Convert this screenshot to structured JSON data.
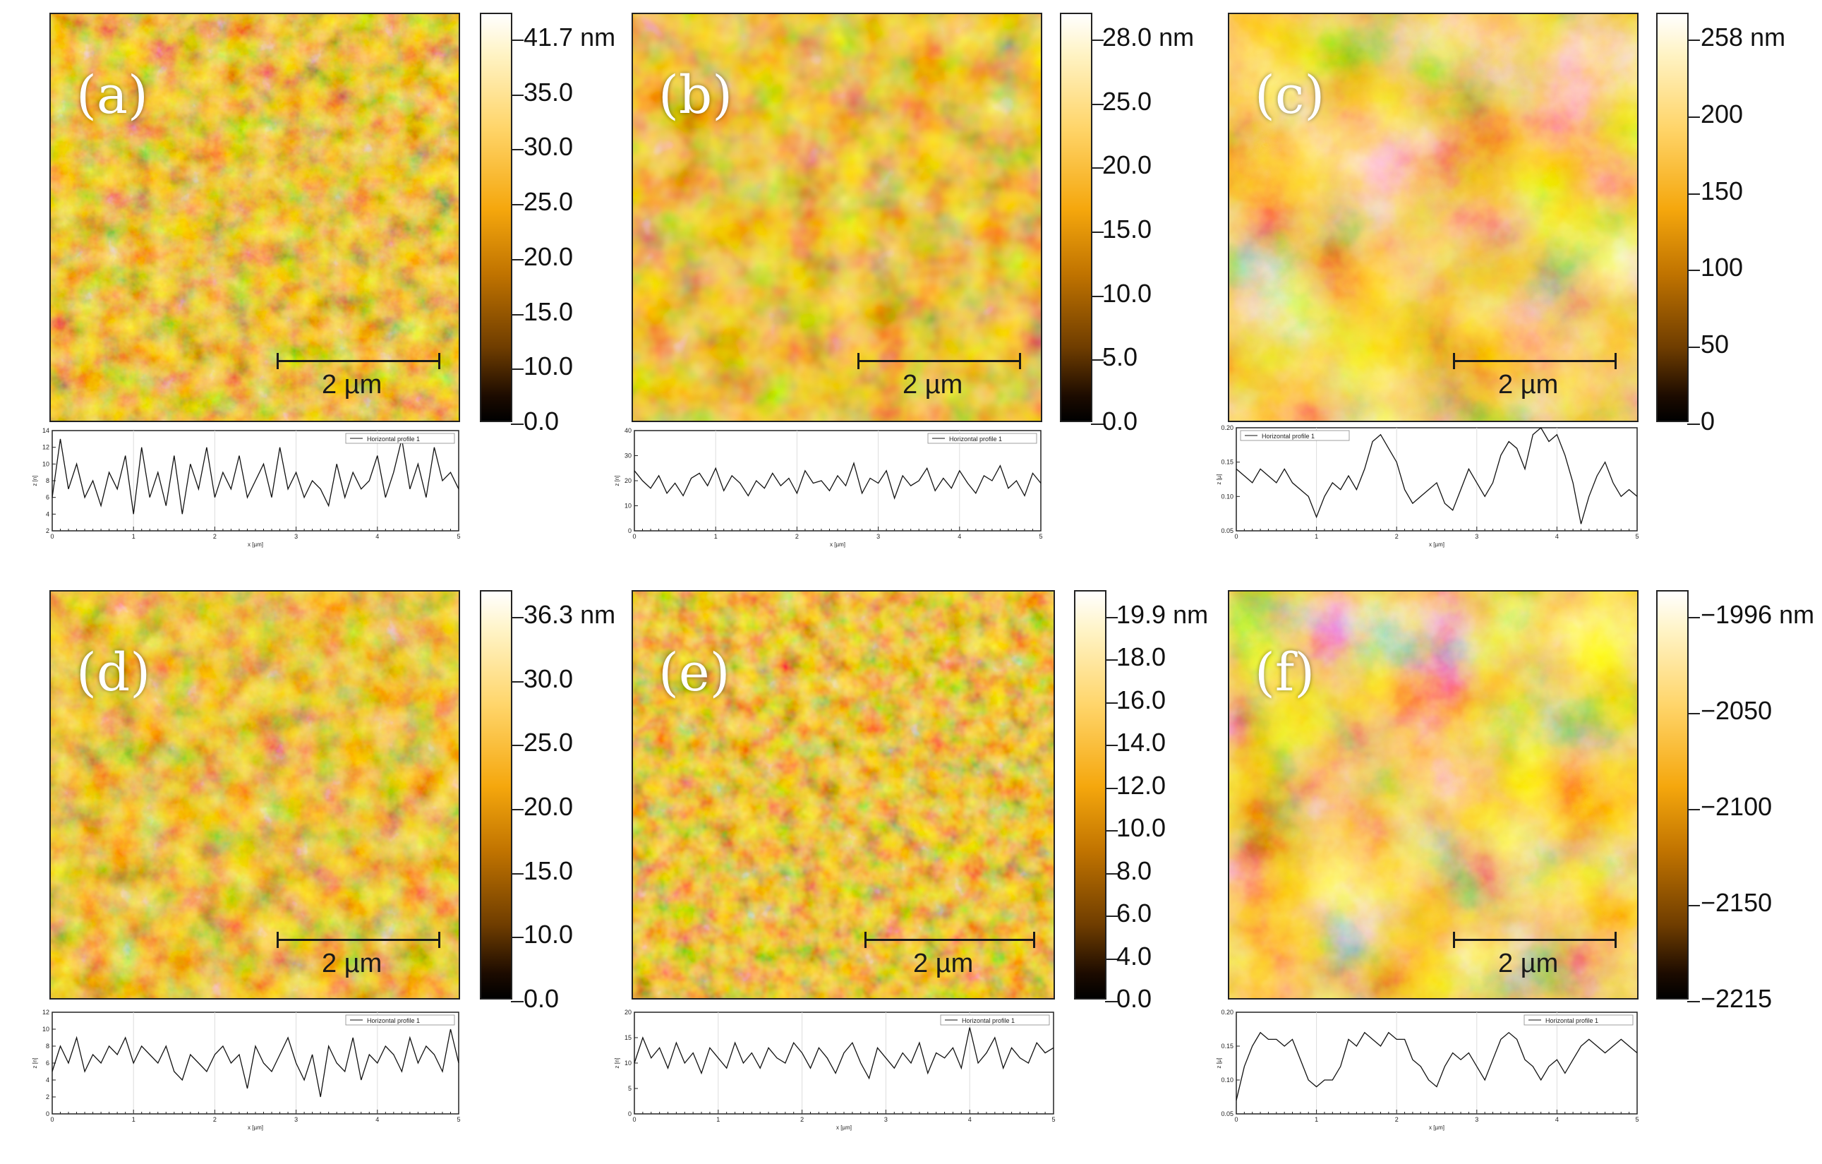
{
  "chart_data": [
    {
      "type": "line",
      "panel": "a",
      "label": "(a)",
      "scale_bar": "2 µm",
      "colorbar": {
        "ticks": [
          "41.7 nm",
          "35.0",
          "30.0",
          "25.0",
          "20.0",
          "15.0",
          "10.0",
          "0.0"
        ]
      },
      "profile": {
        "legend": "Horizontal profile 1",
        "xlabel": "x [µm]",
        "ylabel": "z [n]",
        "xlim": [
          0,
          5
        ],
        "ylim": [
          2,
          14
        ],
        "xticks": [
          "0",
          "1",
          "2",
          "3",
          "4",
          "5"
        ],
        "yticks": [
          "14",
          "12",
          "10",
          "8",
          "6",
          "4",
          "2"
        ],
        "x": [
          0,
          0.1,
          0.2,
          0.3,
          0.4,
          0.5,
          0.6,
          0.7,
          0.8,
          0.9,
          1.0,
          1.1,
          1.2,
          1.3,
          1.4,
          1.5,
          1.6,
          1.7,
          1.8,
          1.9,
          2.0,
          2.1,
          2.2,
          2.3,
          2.4,
          2.5,
          2.6,
          2.7,
          2.8,
          2.9,
          3.0,
          3.1,
          3.2,
          3.3,
          3.4,
          3.5,
          3.6,
          3.7,
          3.8,
          3.9,
          4.0,
          4.1,
          4.2,
          4.3,
          4.4,
          4.5,
          4.6,
          4.7,
          4.8,
          4.9,
          5.0
        ],
        "y": [
          6,
          13,
          7,
          10,
          6,
          8,
          5,
          9,
          7,
          11,
          4,
          12,
          6,
          9,
          5,
          11,
          4,
          10,
          7,
          12,
          6,
          9,
          7,
          11,
          6,
          8,
          10,
          6,
          12,
          7,
          9,
          6,
          8,
          7,
          5,
          10,
          6,
          9,
          7,
          8,
          11,
          6,
          9,
          13,
          7,
          10,
          6,
          12,
          8,
          9,
          7
        ]
      }
    },
    {
      "type": "line",
      "panel": "b",
      "label": "(b)",
      "scale_bar": "2 µm",
      "colorbar": {
        "ticks": [
          "28.0 nm",
          "25.0",
          "20.0",
          "15.0",
          "10.0",
          "5.0",
          "0.0"
        ]
      },
      "profile": {
        "legend": "Horizontal profile 1",
        "xlabel": "x [µm]",
        "ylabel": "z [n]",
        "xlim": [
          0,
          5
        ],
        "ylim": [
          0,
          40
        ],
        "xticks": [
          "0",
          "1",
          "2",
          "3",
          "4",
          "5"
        ],
        "yticks": [
          "40",
          "30",
          "20",
          "10",
          "0"
        ],
        "x": [
          0,
          0.1,
          0.2,
          0.3,
          0.4,
          0.5,
          0.6,
          0.7,
          0.8,
          0.9,
          1.0,
          1.1,
          1.2,
          1.3,
          1.4,
          1.5,
          1.6,
          1.7,
          1.8,
          1.9,
          2.0,
          2.1,
          2.2,
          2.3,
          2.4,
          2.5,
          2.6,
          2.7,
          2.8,
          2.9,
          3.0,
          3.1,
          3.2,
          3.3,
          3.4,
          3.5,
          3.6,
          3.7,
          3.8,
          3.9,
          4.0,
          4.1,
          4.2,
          4.3,
          4.4,
          4.5,
          4.6,
          4.7,
          4.8,
          4.9,
          5.0
        ],
        "y": [
          24,
          20,
          17,
          22,
          15,
          19,
          14,
          21,
          23,
          18,
          25,
          16,
          22,
          19,
          14,
          20,
          17,
          23,
          18,
          21,
          15,
          24,
          19,
          20,
          16,
          22,
          18,
          27,
          15,
          21,
          19,
          24,
          13,
          22,
          18,
          20,
          25,
          16,
          21,
          17,
          24,
          19,
          15,
          22,
          20,
          26,
          17,
          20,
          14,
          23,
          19
        ]
      }
    },
    {
      "type": "line",
      "panel": "c",
      "label": "(c)",
      "scale_bar": "2 µm",
      "colorbar": {
        "ticks": [
          "258 nm",
          "200",
          "150",
          "100",
          "50",
          "0"
        ]
      },
      "profile": {
        "legend": "Horizontal profile 1",
        "xlabel": "x [µm]",
        "ylabel": "z [µ]",
        "xlim": [
          0,
          5
        ],
        "ylim": [
          0.05,
          0.2
        ],
        "xticks": [
          "0",
          "1",
          "2",
          "3",
          "4",
          "5"
        ],
        "yticks": [
          "0.20",
          "0.15",
          "0.10",
          "0.05"
        ],
        "x": [
          0,
          0.1,
          0.2,
          0.3,
          0.4,
          0.5,
          0.6,
          0.7,
          0.8,
          0.9,
          1.0,
          1.1,
          1.2,
          1.3,
          1.4,
          1.5,
          1.6,
          1.7,
          1.8,
          1.9,
          2.0,
          2.1,
          2.2,
          2.3,
          2.4,
          2.5,
          2.6,
          2.7,
          2.8,
          2.9,
          3.0,
          3.1,
          3.2,
          3.3,
          3.4,
          3.5,
          3.6,
          3.7,
          3.8,
          3.9,
          4.0,
          4.1,
          4.2,
          4.3,
          4.4,
          4.5,
          4.6,
          4.7,
          4.8,
          4.9,
          5.0
        ],
        "y": [
          0.14,
          0.13,
          0.12,
          0.14,
          0.13,
          0.12,
          0.14,
          0.12,
          0.11,
          0.1,
          0.07,
          0.1,
          0.12,
          0.11,
          0.13,
          0.11,
          0.14,
          0.18,
          0.19,
          0.17,
          0.15,
          0.11,
          0.09,
          0.1,
          0.11,
          0.12,
          0.09,
          0.08,
          0.11,
          0.14,
          0.12,
          0.1,
          0.12,
          0.16,
          0.18,
          0.17,
          0.14,
          0.19,
          0.2,
          0.18,
          0.19,
          0.16,
          0.12,
          0.06,
          0.1,
          0.13,
          0.15,
          0.12,
          0.1,
          0.11,
          0.1
        ]
      }
    },
    {
      "type": "line",
      "panel": "d",
      "label": "(d)",
      "scale_bar": "2 µm",
      "colorbar": {
        "ticks": [
          "36.3 nm",
          "30.0",
          "25.0",
          "20.0",
          "15.0",
          "10.0",
          "0.0"
        ]
      },
      "profile": {
        "legend": "Horizontal profile 1",
        "xlabel": "x [µm]",
        "ylabel": "z [n]",
        "xlim": [
          0,
          5
        ],
        "ylim": [
          0,
          12
        ],
        "xticks": [
          "0",
          "1",
          "2",
          "3",
          "4",
          "5"
        ],
        "yticks": [
          "12",
          "10",
          "8",
          "6",
          "4",
          "2",
          "0"
        ],
        "x": [
          0,
          0.1,
          0.2,
          0.3,
          0.4,
          0.5,
          0.6,
          0.7,
          0.8,
          0.9,
          1.0,
          1.1,
          1.2,
          1.3,
          1.4,
          1.5,
          1.6,
          1.7,
          1.8,
          1.9,
          2.0,
          2.1,
          2.2,
          2.3,
          2.4,
          2.5,
          2.6,
          2.7,
          2.8,
          2.9,
          3.0,
          3.1,
          3.2,
          3.3,
          3.4,
          3.5,
          3.6,
          3.7,
          3.8,
          3.9,
          4.0,
          4.1,
          4.2,
          4.3,
          4.4,
          4.5,
          4.6,
          4.7,
          4.8,
          4.9,
          5.0
        ],
        "y": [
          5,
          8,
          6,
          9,
          5,
          7,
          6,
          8,
          7,
          9,
          6,
          8,
          7,
          6,
          8,
          5,
          4,
          7,
          6,
          5,
          7,
          8,
          6,
          7,
          3,
          8,
          6,
          5,
          7,
          9,
          6,
          4,
          7,
          2,
          8,
          6,
          5,
          9,
          4,
          7,
          6,
          8,
          7,
          5,
          9,
          6,
          8,
          7,
          5,
          10,
          6
        ]
      }
    },
    {
      "type": "line",
      "panel": "e",
      "label": "(e)",
      "scale_bar": "2 µm",
      "colorbar": {
        "ticks": [
          "19.9 nm",
          "18.0",
          "16.0",
          "14.0",
          "12.0",
          "10.0",
          "8.0",
          "6.0",
          "4.0",
          "0.0"
        ]
      },
      "profile": {
        "legend": "Horizontal profile 1",
        "xlabel": "x [µm]",
        "ylabel": "z [n]",
        "xlim": [
          0,
          5
        ],
        "ylim": [
          0,
          20
        ],
        "xticks": [
          "0",
          "1",
          "2",
          "3",
          "4",
          "5"
        ],
        "yticks": [
          "20",
          "15",
          "10",
          "5",
          "0"
        ],
        "x": [
          0,
          0.1,
          0.2,
          0.3,
          0.4,
          0.5,
          0.6,
          0.7,
          0.8,
          0.9,
          1.0,
          1.1,
          1.2,
          1.3,
          1.4,
          1.5,
          1.6,
          1.7,
          1.8,
          1.9,
          2.0,
          2.1,
          2.2,
          2.3,
          2.4,
          2.5,
          2.6,
          2.7,
          2.8,
          2.9,
          3.0,
          3.1,
          3.2,
          3.3,
          3.4,
          3.5,
          3.6,
          3.7,
          3.8,
          3.9,
          4.0,
          4.1,
          4.2,
          4.3,
          4.4,
          4.5,
          4.6,
          4.7,
          4.8,
          4.9,
          5.0
        ],
        "y": [
          10,
          15,
          11,
          13,
          9,
          14,
          10,
          12,
          8,
          13,
          11,
          9,
          14,
          10,
          12,
          9,
          13,
          11,
          10,
          14,
          12,
          9,
          13,
          11,
          8,
          12,
          14,
          10,
          7,
          13,
          11,
          9,
          12,
          10,
          14,
          8,
          12,
          11,
          13,
          9,
          17,
          10,
          12,
          15,
          9,
          13,
          11,
          10,
          14,
          12,
          13
        ]
      }
    },
    {
      "type": "line",
      "panel": "f",
      "label": "(f)",
      "scale_bar": "2 µm",
      "colorbar": {
        "ticks": [
          "−1996 nm",
          "−2050",
          "−2100",
          "−2150",
          "−2215"
        ]
      },
      "profile": {
        "legend": "Horizontal profile 1",
        "xlabel": "x [µm]",
        "ylabel": "z [µ]",
        "xlim": [
          0,
          5
        ],
        "ylim": [
          0.05,
          0.2
        ],
        "xticks": [
          "0",
          "1",
          "2",
          "3",
          "4",
          "5"
        ],
        "yticks": [
          "0.20",
          "0.15",
          "0.10",
          "0.05"
        ],
        "x": [
          0,
          0.1,
          0.2,
          0.3,
          0.4,
          0.5,
          0.6,
          0.7,
          0.8,
          0.9,
          1.0,
          1.1,
          1.2,
          1.3,
          1.4,
          1.5,
          1.6,
          1.7,
          1.8,
          1.9,
          2.0,
          2.1,
          2.2,
          2.3,
          2.4,
          2.5,
          2.6,
          2.7,
          2.8,
          2.9,
          3.0,
          3.1,
          3.2,
          3.3,
          3.4,
          3.5,
          3.6,
          3.7,
          3.8,
          3.9,
          4.0,
          4.1,
          4.2,
          4.3,
          4.4,
          4.5,
          4.6,
          4.7,
          4.8,
          4.9,
          5.0
        ],
        "y": [
          0.07,
          0.12,
          0.15,
          0.17,
          0.16,
          0.16,
          0.15,
          0.16,
          0.13,
          0.1,
          0.09,
          0.1,
          0.1,
          0.12,
          0.16,
          0.15,
          0.17,
          0.16,
          0.15,
          0.17,
          0.16,
          0.16,
          0.13,
          0.12,
          0.1,
          0.09,
          0.12,
          0.14,
          0.13,
          0.14,
          0.12,
          0.1,
          0.13,
          0.16,
          0.17,
          0.16,
          0.13,
          0.12,
          0.1,
          0.12,
          0.13,
          0.11,
          0.13,
          0.15,
          0.16,
          0.15,
          0.14,
          0.15,
          0.16,
          0.15,
          0.14
        ]
      }
    }
  ]
}
